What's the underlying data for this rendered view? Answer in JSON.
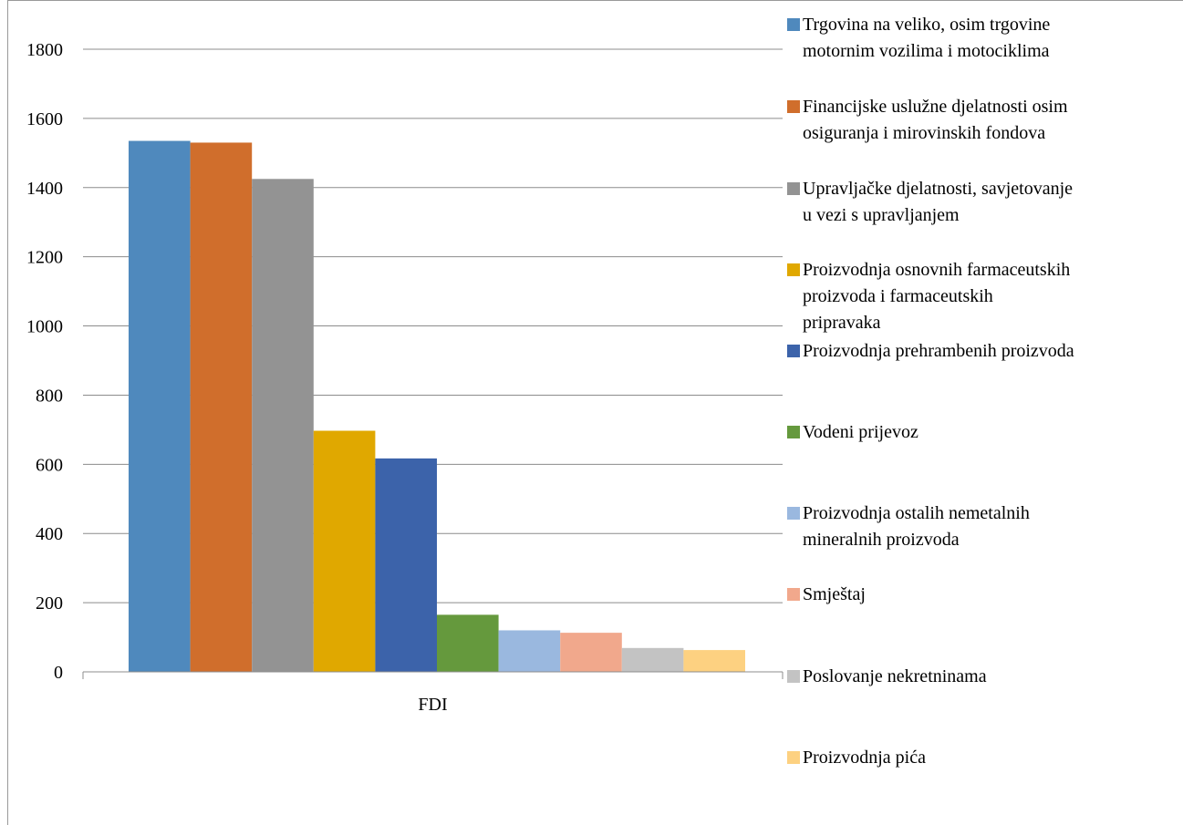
{
  "chart_data": {
    "type": "bar",
    "categories": [
      "FDI"
    ],
    "ylim": [
      0,
      1800
    ],
    "yticks": [
      0,
      200,
      400,
      600,
      800,
      1000,
      1200,
      1400,
      1600,
      1800
    ],
    "grid": true,
    "legend_position": "right",
    "series": [
      {
        "name": "Trgovina na veliko, osim trgovine motornim vozilima i motociklima",
        "values": [
          1535
        ],
        "color": "#4f89bd"
      },
      {
        "name": "Financijske uslužne djelatnosti osim osiguranja i mirovinskih fondova",
        "values": [
          1530
        ],
        "color": "#d06e2c"
      },
      {
        "name": "Upravljačke djelatnosti, savjetovanje u vezi s upravljanjem",
        "values": [
          1425
        ],
        "color": "#939393"
      },
      {
        "name": "Proizvodnja osnovnih farmaceutskih proizvoda i farmaceutskih pripravaka",
        "values": [
          697
        ],
        "color": "#e0a800"
      },
      {
        "name": "Proizvodnja prehrambenih proizvoda",
        "values": [
          617
        ],
        "color": "#3c63aa"
      },
      {
        "name": "Vodeni prijevoz",
        "values": [
          165
        ],
        "color": "#65993d"
      },
      {
        "name": "Proizvodnja ostalih nemetalnih mineralnih proizvoda",
        "values": [
          120
        ],
        "color": "#9ab8df"
      },
      {
        "name": "Smještaj",
        "values": [
          113
        ],
        "color": "#f1a88c"
      },
      {
        "name": "Poslovanje nekretninama",
        "values": [
          69
        ],
        "color": "#c3c3c3"
      },
      {
        "name": "Proizvodnja pića",
        "values": [
          63
        ],
        "color": "#fdd181"
      }
    ]
  },
  "legend": {
    "lines": [
      [
        "Trgovina na veliko, osim trgovine",
        "motornim vozilima i motociklima"
      ],
      [
        "Financijske uslužne djelatnosti osim",
        "osiguranja i mirovinskih fondova"
      ],
      [
        "Upravljačke djelatnosti, savjetovanje",
        "u vezi s upravljanjem"
      ],
      [
        "Proizvodnja osnovnih farmaceutskih",
        "proizvoda i farmaceutskih",
        "pripravaka"
      ],
      [
        "Proizvodnja prehrambenih proizvoda"
      ],
      [
        "Vodeni prijevoz"
      ],
      [
        "Proizvodnja ostalih nemetalnih",
        "mineralnih proizvoda"
      ],
      [
        "Smještaj"
      ],
      [
        "Poslovanje nekretninama"
      ],
      [
        "Proizvodnja pića"
      ]
    ]
  }
}
